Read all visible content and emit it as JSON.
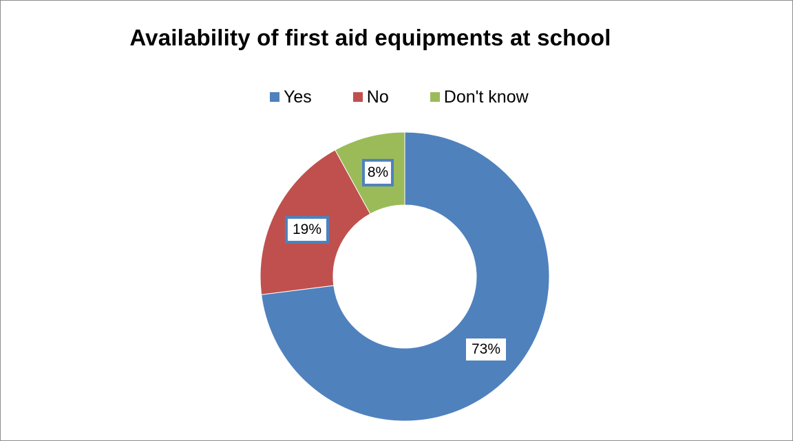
{
  "chart_data": {
    "type": "pie",
    "subtype": "donut",
    "title": "Availability of first aid equipments at school",
    "legend_position": "top",
    "categories": [
      "Yes",
      "No",
      "Don't know"
    ],
    "values": [
      73,
      19,
      8
    ],
    "labels": [
      "73%",
      "19%",
      "8%"
    ],
    "colors": [
      "#4f81bd",
      "#c0504d",
      "#9bbb59"
    ],
    "unit": "%"
  }
}
